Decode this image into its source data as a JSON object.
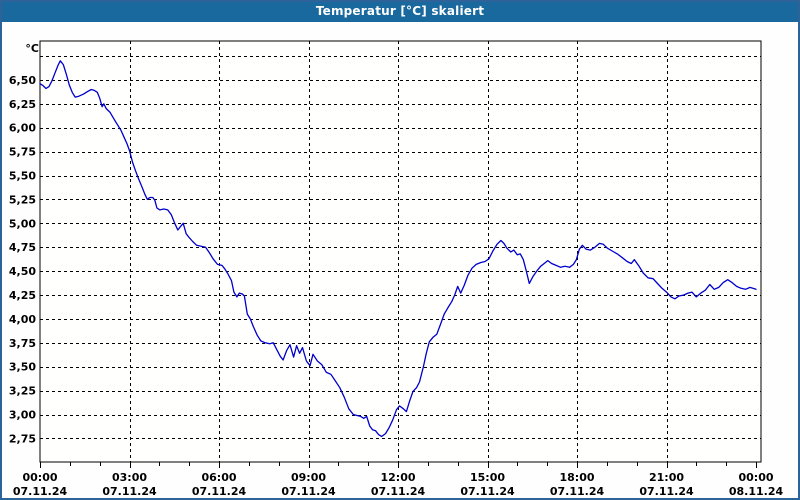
{
  "window": {
    "title": "Temperatur [°C] skaliert"
  },
  "colors": {
    "titlebar_bg": "#1a699e",
    "titlebar_text": "#ffffff",
    "window_border": "#2e6399",
    "plot_bg": "#fffffe",
    "grid": "#000000",
    "axis": "#000000",
    "label_text": "#000000",
    "line": "#0000cc"
  },
  "chart_data": {
    "type": "line",
    "title": "Temperatur [°C] skaliert",
    "ylabel": "°C",
    "grid": "dashed",
    "legend_position": "none",
    "x_axis": {
      "kind": "time",
      "span_hours": 24,
      "major_tick_hours": 3,
      "minor_tick_hours": 1,
      "gridline_hours": [
        3,
        6,
        9,
        12,
        15,
        18,
        21
      ],
      "ticks": [
        {
          "hour": 0,
          "time": "00:00",
          "date": "07.11.24"
        },
        {
          "hour": 3,
          "time": "03:00",
          "date": "07.11.24"
        },
        {
          "hour": 6,
          "time": "06:00",
          "date": "07.11.24"
        },
        {
          "hour": 9,
          "time": "09:00",
          "date": "07.11.24"
        },
        {
          "hour": 12,
          "time": "12:00",
          "date": "07.11.24"
        },
        {
          "hour": 15,
          "time": "15:00",
          "date": "07.11.24"
        },
        {
          "hour": 18,
          "time": "18:00",
          "date": "07.11.24"
        },
        {
          "hour": 21,
          "time": "21:00",
          "date": "07.11.24"
        },
        {
          "hour": 24,
          "time": "00:00",
          "date": "08.11.24"
        }
      ]
    },
    "y_axis": {
      "unit": "°C",
      "grid_min": 2.75,
      "grid_max": 6.75,
      "grid_step": 0.25,
      "ticks": [
        {
          "value": 6.5,
          "label": "6,50"
        },
        {
          "value": 6.25,
          "label": "6,25"
        },
        {
          "value": 6.0,
          "label": "6,00"
        },
        {
          "value": 5.75,
          "label": "5,75"
        },
        {
          "value": 5.5,
          "label": "5,50"
        },
        {
          "value": 5.25,
          "label": "5,25"
        },
        {
          "value": 5.0,
          "label": "5,00"
        },
        {
          "value": 4.75,
          "label": "4,75"
        },
        {
          "value": 4.5,
          "label": "4,50"
        },
        {
          "value": 4.25,
          "label": "4,25"
        },
        {
          "value": 4.0,
          "label": "4,00"
        },
        {
          "value": 3.75,
          "label": "3,75"
        },
        {
          "value": 3.5,
          "label": "3,50"
        },
        {
          "value": 3.25,
          "label": "3,25"
        },
        {
          "value": 3.0,
          "label": "3,00"
        },
        {
          "value": 2.75,
          "label": "2,75"
        }
      ]
    },
    "series": [
      {
        "name": "Temperatur [°C]",
        "color": "#0000cc",
        "points": [
          [
            0,
            6.46
          ],
          [
            0.1,
            6.44
          ],
          [
            0.2,
            6.41
          ],
          [
            0.3,
            6.43
          ],
          [
            0.4,
            6.49
          ],
          [
            0.5,
            6.57
          ],
          [
            0.6,
            6.65
          ],
          [
            0.68,
            6.7
          ],
          [
            0.78,
            6.66
          ],
          [
            0.88,
            6.56
          ],
          [
            0.98,
            6.45
          ],
          [
            1.08,
            6.37
          ],
          [
            1.18,
            6.32
          ],
          [
            1.3,
            6.33
          ],
          [
            1.45,
            6.35
          ],
          [
            1.6,
            6.38
          ],
          [
            1.72,
            6.4
          ],
          [
            1.82,
            6.39
          ],
          [
            1.92,
            6.37
          ],
          [
            2.0,
            6.31
          ],
          [
            2.08,
            6.22
          ],
          [
            2.14,
            6.25
          ],
          [
            2.22,
            6.2
          ],
          [
            2.35,
            6.16
          ],
          [
            2.5,
            6.08
          ],
          [
            2.62,
            6.02
          ],
          [
            2.72,
            5.97
          ],
          [
            2.82,
            5.9
          ],
          [
            2.92,
            5.83
          ],
          [
            3.0,
            5.76
          ],
          [
            3.1,
            5.64
          ],
          [
            3.2,
            5.55
          ],
          [
            3.3,
            5.47
          ],
          [
            3.42,
            5.38
          ],
          [
            3.52,
            5.3
          ],
          [
            3.6,
            5.25
          ],
          [
            3.68,
            5.27
          ],
          [
            3.78,
            5.27
          ],
          [
            3.85,
            5.24
          ],
          [
            3.92,
            5.16
          ],
          [
            4.02,
            5.14
          ],
          [
            4.15,
            5.15
          ],
          [
            4.28,
            5.14
          ],
          [
            4.4,
            5.09
          ],
          [
            4.5,
            5.01
          ],
          [
            4.62,
            4.93
          ],
          [
            4.72,
            4.97
          ],
          [
            4.8,
            5.0
          ],
          [
            4.9,
            4.89
          ],
          [
            5.0,
            4.85
          ],
          [
            5.12,
            4.81
          ],
          [
            5.25,
            4.77
          ],
          [
            5.4,
            4.76
          ],
          [
            5.55,
            4.75
          ],
          [
            5.68,
            4.69
          ],
          [
            5.8,
            4.63
          ],
          [
            5.95,
            4.57
          ],
          [
            6.1,
            4.56
          ],
          [
            6.2,
            4.52
          ],
          [
            6.3,
            4.47
          ],
          [
            6.42,
            4.4
          ],
          [
            6.5,
            4.28
          ],
          [
            6.6,
            4.23
          ],
          [
            6.68,
            4.27
          ],
          [
            6.78,
            4.26
          ],
          [
            6.85,
            4.24
          ],
          [
            6.95,
            4.05
          ],
          [
            7.05,
            4.0
          ],
          [
            7.15,
            3.92
          ],
          [
            7.28,
            3.83
          ],
          [
            7.4,
            3.77
          ],
          [
            7.55,
            3.75
          ],
          [
            7.7,
            3.74
          ],
          [
            7.82,
            3.75
          ],
          [
            7.95,
            3.67
          ],
          [
            8.05,
            3.61
          ],
          [
            8.15,
            3.57
          ],
          [
            8.27,
            3.67
          ],
          [
            8.38,
            3.73
          ],
          [
            8.5,
            3.6
          ],
          [
            8.6,
            3.72
          ],
          [
            8.7,
            3.64
          ],
          [
            8.8,
            3.7
          ],
          [
            8.93,
            3.56
          ],
          [
            9.05,
            3.51
          ],
          [
            9.15,
            3.63
          ],
          [
            9.3,
            3.56
          ],
          [
            9.45,
            3.52
          ],
          [
            9.6,
            3.44
          ],
          [
            9.75,
            3.42
          ],
          [
            9.9,
            3.35
          ],
          [
            10.05,
            3.28
          ],
          [
            10.2,
            3.18
          ],
          [
            10.35,
            3.06
          ],
          [
            10.5,
            3.0
          ],
          [
            10.63,
            2.99
          ],
          [
            10.75,
            2.98
          ],
          [
            10.85,
            2.96
          ],
          [
            10.95,
            2.98
          ],
          [
            11.05,
            2.88
          ],
          [
            11.15,
            2.84
          ],
          [
            11.25,
            2.83
          ],
          [
            11.35,
            2.79
          ],
          [
            11.45,
            2.77
          ],
          [
            11.58,
            2.8
          ],
          [
            11.7,
            2.86
          ],
          [
            11.82,
            2.94
          ],
          [
            11.95,
            3.05
          ],
          [
            12.05,
            3.09
          ],
          [
            12.18,
            3.06
          ],
          [
            12.28,
            3.03
          ],
          [
            12.4,
            3.15
          ],
          [
            12.5,
            3.24
          ],
          [
            12.62,
            3.28
          ],
          [
            12.72,
            3.34
          ],
          [
            12.85,
            3.5
          ],
          [
            12.95,
            3.64
          ],
          [
            13.05,
            3.76
          ],
          [
            13.18,
            3.81
          ],
          [
            13.3,
            3.84
          ],
          [
            13.42,
            3.94
          ],
          [
            13.55,
            4.05
          ],
          [
            13.68,
            4.12
          ],
          [
            13.8,
            4.18
          ],
          [
            13.9,
            4.25
          ],
          [
            14.0,
            4.34
          ],
          [
            14.1,
            4.27
          ],
          [
            14.22,
            4.35
          ],
          [
            14.35,
            4.46
          ],
          [
            14.48,
            4.53
          ],
          [
            14.62,
            4.57
          ],
          [
            14.78,
            4.59
          ],
          [
            14.92,
            4.6
          ],
          [
            15.05,
            4.63
          ],
          [
            15.18,
            4.71
          ],
          [
            15.32,
            4.78
          ],
          [
            15.45,
            4.82
          ],
          [
            15.55,
            4.79
          ],
          [
            15.65,
            4.74
          ],
          [
            15.78,
            4.7
          ],
          [
            15.88,
            4.72
          ],
          [
            16.0,
            4.67
          ],
          [
            16.1,
            4.68
          ],
          [
            16.2,
            4.62
          ],
          [
            16.3,
            4.5
          ],
          [
            16.4,
            4.37
          ],
          [
            16.52,
            4.44
          ],
          [
            16.65,
            4.5
          ],
          [
            16.78,
            4.55
          ],
          [
            16.9,
            4.58
          ],
          [
            17.02,
            4.61
          ],
          [
            17.15,
            4.58
          ],
          [
            17.3,
            4.56
          ],
          [
            17.45,
            4.54
          ],
          [
            17.6,
            4.55
          ],
          [
            17.75,
            4.54
          ],
          [
            17.88,
            4.57
          ],
          [
            17.98,
            4.62
          ],
          [
            18.08,
            4.73
          ],
          [
            18.18,
            4.77
          ],
          [
            18.3,
            4.73
          ],
          [
            18.45,
            4.72
          ],
          [
            18.6,
            4.75
          ],
          [
            18.75,
            4.79
          ],
          [
            18.88,
            4.78
          ],
          [
            19.02,
            4.74
          ],
          [
            19.18,
            4.71
          ],
          [
            19.35,
            4.68
          ],
          [
            19.52,
            4.64
          ],
          [
            19.68,
            4.6
          ],
          [
            19.82,
            4.58
          ],
          [
            19.92,
            4.62
          ],
          [
            20.08,
            4.55
          ],
          [
            20.22,
            4.48
          ],
          [
            20.38,
            4.43
          ],
          [
            20.55,
            4.42
          ],
          [
            20.7,
            4.37
          ],
          [
            20.85,
            4.32
          ],
          [
            21.0,
            4.28
          ],
          [
            21.15,
            4.23
          ],
          [
            21.28,
            4.21
          ],
          [
            21.42,
            4.24
          ],
          [
            21.58,
            4.25
          ],
          [
            21.72,
            4.27
          ],
          [
            21.85,
            4.28
          ],
          [
            22.0,
            4.23
          ],
          [
            22.15,
            4.27
          ],
          [
            22.3,
            4.3
          ],
          [
            22.45,
            4.36
          ],
          [
            22.6,
            4.31
          ],
          [
            22.75,
            4.33
          ],
          [
            22.9,
            4.38
          ],
          [
            23.05,
            4.41
          ],
          [
            23.2,
            4.38
          ],
          [
            23.35,
            4.34
          ],
          [
            23.5,
            4.32
          ],
          [
            23.65,
            4.31
          ],
          [
            23.8,
            4.33
          ],
          [
            24.0,
            4.31
          ]
        ]
      }
    ]
  }
}
